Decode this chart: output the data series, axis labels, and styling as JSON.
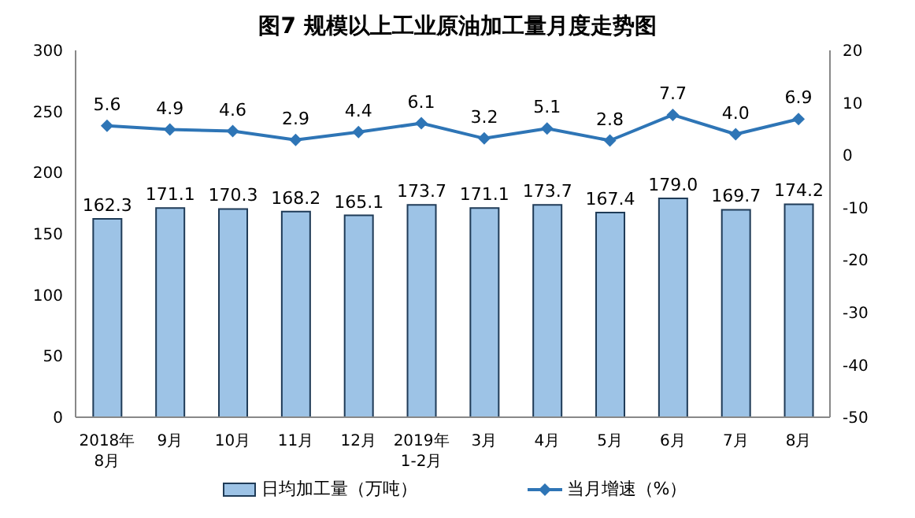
{
  "chart_data": {
    "type": "bar",
    "title": "图7  规模以上工业原油加工量月度走势图",
    "categories": [
      "2018年\n8月",
      "9月",
      "10月",
      "11月",
      "12月",
      "2019年\n1-2月",
      "3月",
      "4月",
      "5月",
      "6月",
      "7月",
      "8月"
    ],
    "series": [
      {
        "name": "日均加工量（万吨）",
        "color": "#9dc3e6",
        "values": [
          162.3,
          171.1,
          170.3,
          168.2,
          165.1,
          173.7,
          171.1,
          173.7,
          167.4,
          179.0,
          169.7,
          174.2
        ],
        "value_labels": [
          "162.3",
          "171.1",
          "170.3",
          "168.2",
          "165.1",
          "173.7",
          "171.1",
          "173.7",
          "167.4",
          "179.0",
          "169.7",
          "174.2"
        ]
      },
      {
        "name": "当月增速（%）",
        "type": "line",
        "axis": "y2",
        "color": "#2e75b6",
        "marker": "diamond",
        "values": [
          5.6,
          4.9,
          4.6,
          2.9,
          4.4,
          6.1,
          3.2,
          5.1,
          2.8,
          7.7,
          4.0,
          6.9
        ],
        "value_labels": [
          "5.6",
          "4.9",
          "4.6",
          "2.9",
          "4.4",
          "6.1",
          "3.2",
          "5.1",
          "2.8",
          "7.7",
          "4.0",
          "6.9"
        ]
      }
    ],
    "ylim": [
      0,
      300
    ],
    "yticks": [
      0,
      50,
      100,
      150,
      200,
      250,
      300
    ],
    "y2lim": [
      -50,
      20
    ],
    "y2ticks": [
      -50,
      -40,
      -30,
      -20,
      -10,
      0,
      10,
      20
    ],
    "legend": "bottom"
  }
}
